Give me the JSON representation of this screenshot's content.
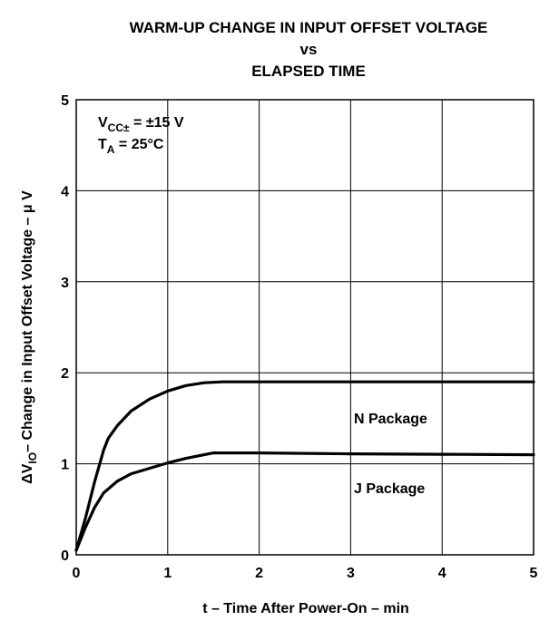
{
  "chart_data": {
    "type": "line",
    "title_line1": "WARM-UP CHANGE IN INPUT OFFSET VOLTAGE",
    "title_line2": "vs",
    "title_line3": "ELAPSED TIME",
    "xlabel": "t – Time After Power-On – min",
    "ylabel": {
      "prefix": "ΔV",
      "subscript": "IO",
      "suffix": "– Change in Input Offset Voltage – μ V"
    },
    "xlim": [
      0,
      5
    ],
    "ylim": [
      0,
      5
    ],
    "xticks": [
      "0",
      "1",
      "2",
      "3",
      "4",
      "5"
    ],
    "yticks": [
      "0",
      "1",
      "2",
      "3",
      "4",
      "5"
    ],
    "grid": true,
    "conditions": {
      "vcc": {
        "main": "V",
        "sub": "CC±",
        "rest": " = ±15 V"
      },
      "ta": {
        "main": "T",
        "sub": "A",
        "rest": " = 25°C"
      }
    },
    "series": [
      {
        "name": "N Package",
        "x": [
          0,
          0.1,
          0.2,
          0.3,
          0.35,
          0.45,
          0.6,
          0.8,
          1.0,
          1.2,
          1.4,
          1.6,
          2.0,
          3.0,
          4.0,
          5.0
        ],
        "y": [
          0.05,
          0.4,
          0.8,
          1.15,
          1.28,
          1.42,
          1.58,
          1.71,
          1.8,
          1.86,
          1.89,
          1.9,
          1.9,
          1.9,
          1.9,
          1.9
        ]
      },
      {
        "name": "J Package",
        "x": [
          0,
          0.1,
          0.2,
          0.3,
          0.45,
          0.6,
          0.8,
          1.0,
          1.2,
          1.5,
          2.0,
          3.0,
          4.0,
          5.0
        ],
        "y": [
          0.05,
          0.3,
          0.52,
          0.68,
          0.81,
          0.89,
          0.95,
          1.01,
          1.06,
          1.12,
          1.12,
          1.11,
          1.105,
          1.1
        ]
      }
    ],
    "annotations": [
      "N Package",
      "J Package"
    ]
  }
}
